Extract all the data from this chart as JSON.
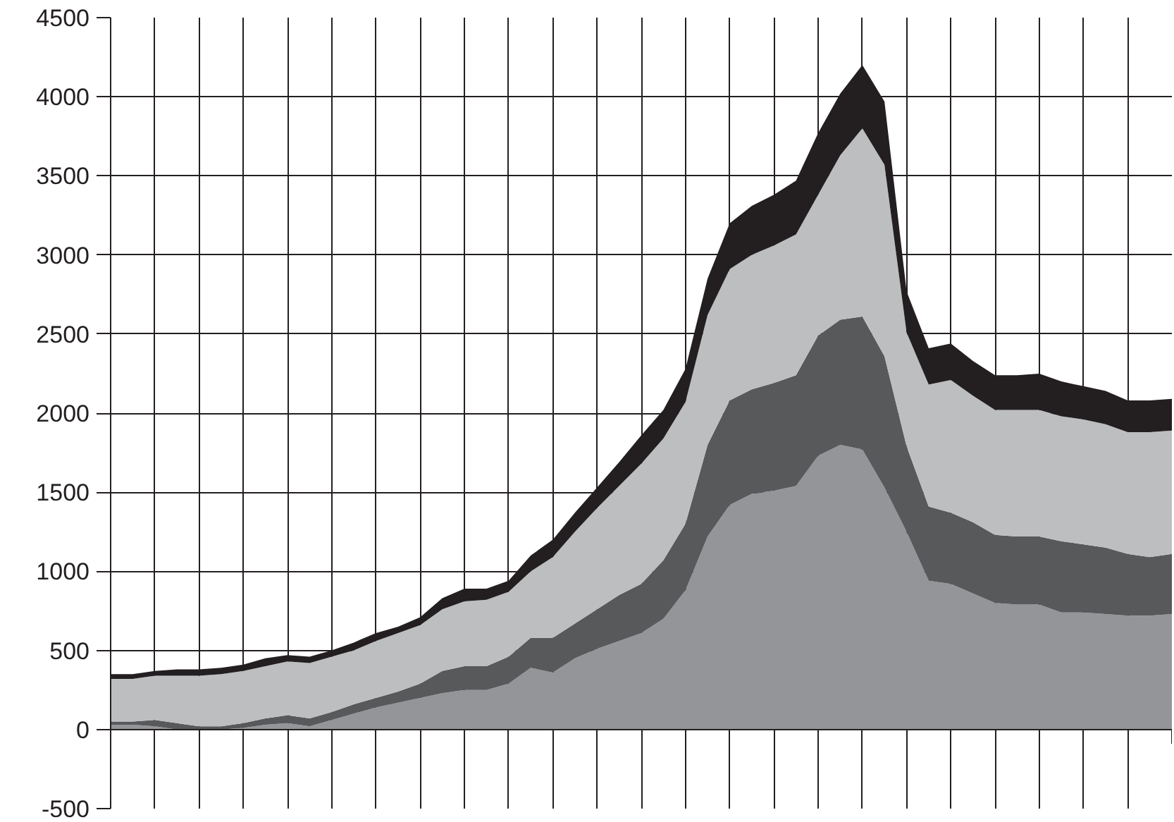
{
  "chart_data": {
    "type": "area",
    "stacked": true,
    "grid": true,
    "tick_labels": "y",
    "categories": [
      null,
      null,
      null,
      null,
      null,
      null,
      null,
      null,
      null,
      null,
      null,
      null,
      null,
      null,
      null,
      null,
      null,
      null,
      null,
      null,
      null,
      null,
      null,
      null,
      null,
      null,
      null,
      null,
      null,
      null,
      null,
      null,
      null,
      null,
      null,
      null,
      null,
      null,
      null,
      null,
      null,
      null,
      null,
      null,
      null,
      null,
      null,
      null,
      null
    ],
    "ylim": [
      -500,
      4500
    ],
    "yticks": [
      -500,
      0,
      500,
      1000,
      1500,
      2000,
      2500,
      3000,
      3500,
      4000,
      4500
    ],
    "series": [
      {
        "color": "#939598",
        "values": [
          30,
          30,
          20,
          0,
          0,
          0,
          10,
          30,
          40,
          20,
          60,
          100,
          140,
          170,
          200,
          230,
          250,
          250,
          290,
          390,
          360,
          450,
          510,
          560,
          610,
          700,
          880,
          1220,
          1420,
          1490,
          1510,
          1540,
          1730,
          1800,
          1770,
          1530,
          1250,
          940,
          920,
          860,
          800,
          790,
          790,
          740,
          740,
          730,
          720,
          720,
          730
        ]
      },
      {
        "color": "#58595b",
        "values": [
          20,
          20,
          40,
          40,
          20,
          20,
          30,
          40,
          50,
          50,
          50,
          60,
          60,
          70,
          90,
          140,
          150,
          150,
          170,
          190,
          220,
          220,
          250,
          290,
          310,
          370,
          420,
          580,
          660,
          660,
          680,
          700,
          760,
          790,
          840,
          830,
          540,
          470,
          450,
          450,
          430,
          430,
          430,
          450,
          430,
          420,
          390,
          370,
          380
        ]
      },
      {
        "color": "#bcbec0",
        "values": [
          270,
          270,
          280,
          300,
          320,
          330,
          330,
          330,
          340,
          350,
          350,
          340,
          360,
          370,
          370,
          390,
          410,
          420,
          410,
          420,
          510,
          580,
          640,
          690,
          760,
          770,
          770,
          820,
          830,
          850,
          870,
          890,
          890,
          1040,
          1190,
          1210,
          720,
          770,
          840,
          800,
          790,
          800,
          800,
          790,
          790,
          780,
          770,
          790,
          780
        ]
      },
      {
        "color": "#231f20",
        "values": [
          30,
          30,
          30,
          40,
          40,
          40,
          40,
          50,
          40,
          40,
          40,
          50,
          50,
          40,
          50,
          70,
          80,
          70,
          70,
          100,
          110,
          120,
          130,
          150,
          180,
          180,
          210,
          230,
          290,
          310,
          320,
          340,
          390,
          390,
          400,
          400,
          260,
          230,
          230,
          220,
          220,
          220,
          230,
          220,
          210,
          210,
          200,
          200,
          200
        ]
      }
    ]
  }
}
